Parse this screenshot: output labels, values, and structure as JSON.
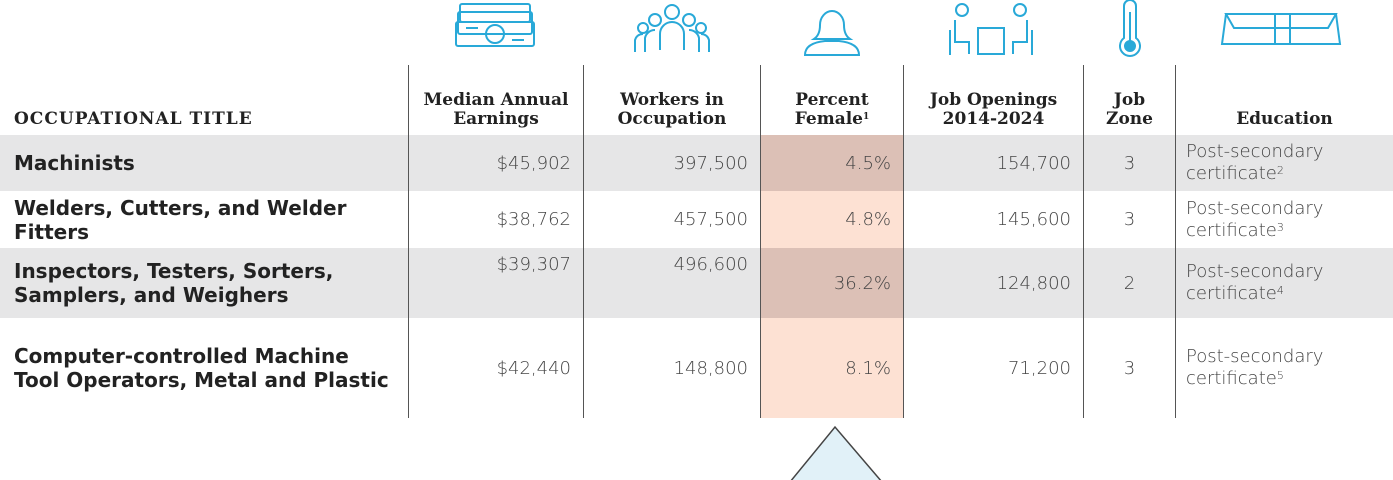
{
  "header": {
    "columns": [
      {
        "label": "OCCUPATIONAL TITLE"
      },
      {
        "label": "Median Annual Earnings"
      },
      {
        "label": "Workers in Occupation"
      },
      {
        "label": "Percent Female",
        "note": "1"
      },
      {
        "label": "Job Openings 2014-2024"
      },
      {
        "label": "Job Zone"
      },
      {
        "label": "Education"
      }
    ]
  },
  "rows": [
    {
      "title": "Machinists",
      "cells": [
        "$45,902",
        "397,500",
        "4.5%",
        "154,700",
        "3"
      ],
      "education": "Post-secondary certificate",
      "note": "2"
    },
    {
      "title": "Welders, Cutters, and Welder Fitters",
      "cells": [
        "$38,762",
        "457,500",
        "4.8%",
        "145,600",
        "3"
      ],
      "education": "Post-secondary certificate",
      "note": "3"
    },
    {
      "title": "Inspectors, Testers, Sorters, Samplers, and Weighers",
      "cells": [
        "$39,307",
        "496,600",
        "36.2%",
        "124,800",
        "2"
      ],
      "education": "Post-secondary certificate",
      "note": "4"
    },
    {
      "title": "Computer-controlled Machine Tool Operators, Metal and Plastic",
      "cells": [
        "$42,440",
        "148,800",
        "8.1%",
        "71,200",
        "3"
      ],
      "education": "Post-secondary certificate",
      "note": "5"
    }
  ]
}
